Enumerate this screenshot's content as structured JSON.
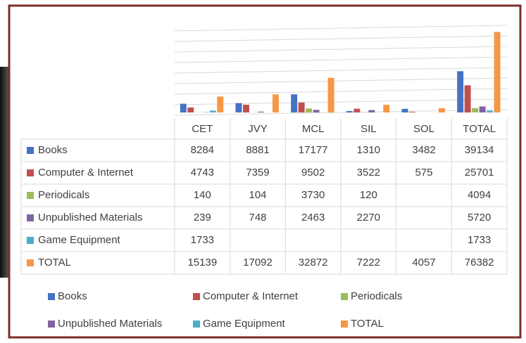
{
  "chart_data": {
    "type": "bar",
    "categories": [
      "CET",
      "JVY",
      "MCL",
      "SIL",
      "SOL",
      "TOTAL"
    ],
    "series": [
      {
        "name": "Books",
        "color": "#4472c4",
        "values": [
          8284,
          8881,
          17177,
          1310,
          3482,
          39134
        ]
      },
      {
        "name": "Computer & Internet",
        "color": "#c0504d",
        "values": [
          4743,
          7359,
          9502,
          3522,
          575,
          25701
        ]
      },
      {
        "name": "Periodicals",
        "color": "#9bbb59",
        "values": [
          140,
          104,
          3730,
          120,
          null,
          4094
        ]
      },
      {
        "name": "Unpublished Materials",
        "color": "#8064a2",
        "values": [
          239,
          748,
          2463,
          2270,
          null,
          5720
        ]
      },
      {
        "name": "Game Equipment",
        "color": "#4bacc6",
        "values": [
          1733,
          null,
          null,
          null,
          null,
          1733
        ]
      },
      {
        "name": "TOTAL",
        "color": "#f79646",
        "values": [
          15139,
          17092,
          32872,
          7222,
          4057,
          76382
        ]
      }
    ],
    "ylim": [
      0,
      80000
    ],
    "yticks": [
      0,
      10000,
      20000,
      30000,
      40000,
      50000,
      60000,
      70000,
      80000
    ],
    "grid": true
  }
}
